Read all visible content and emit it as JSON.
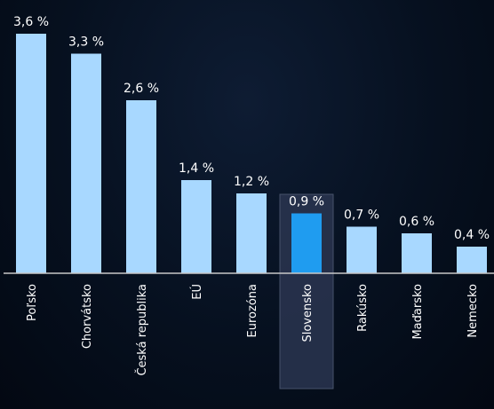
{
  "chart_data": {
    "type": "bar",
    "categories": [
      "Poľsko",
      "Chorvátsko",
      "Česká republika",
      "EÚ",
      "Eurozóna",
      "Slovensko",
      "Rakúsko",
      "Maďarsko",
      "Nemecko"
    ],
    "values": [
      3.6,
      3.3,
      2.6,
      1.4,
      1.2,
      0.9,
      0.7,
      0.6,
      0.4
    ],
    "data_labels": [
      "3,6 %",
      "3,3 %",
      "2,6 %",
      "1,4 %",
      "1,2 %",
      "0,9 %",
      "0,7 %",
      "0,6 %",
      "0,4 %"
    ],
    "highlighted_category": "Slovensko",
    "title": "",
    "xlabel": "",
    "ylabel": "",
    "ylim": [
      0,
      3.6
    ],
    "grid": false,
    "legend": "none",
    "colors": {
      "bar": "#a8d8ff",
      "highlight_bar": "#1f9cf0",
      "highlight_box": "#2a3550",
      "baseline": "#c8c8c8",
      "text": "#ffffff"
    }
  }
}
